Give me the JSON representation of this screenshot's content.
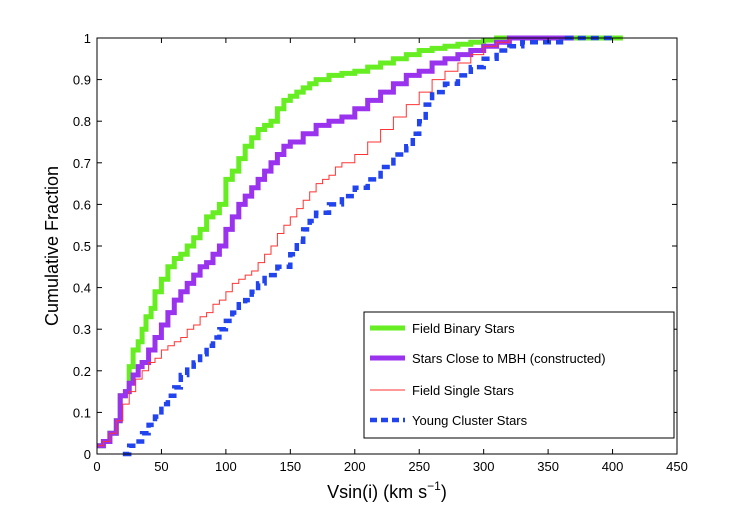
{
  "chart_data": {
    "type": "line",
    "title": "",
    "xlabel": "Vsin(i)  (km s",
    "xlabel_sup": "−1",
    "xlabel_close": ")",
    "ylabel": "Cumulative Fraction",
    "xlim": [
      0,
      450
    ],
    "ylim": [
      0,
      1
    ],
    "xticks": [
      0,
      50,
      100,
      150,
      200,
      250,
      300,
      350,
      400,
      450
    ],
    "yticks": [
      0,
      0.1,
      0.2,
      0.3,
      0.4,
      0.5,
      0.6,
      0.7,
      0.8,
      0.9,
      1
    ],
    "legend_position": "bottom-right",
    "series": [
      {
        "name": "Field Binary Stars",
        "color": "#66ee22",
        "style": "solid-thick",
        "points": [
          [
            0,
            0.02
          ],
          [
            5,
            0.03
          ],
          [
            10,
            0.05
          ],
          [
            15,
            0.08
          ],
          [
            18,
            0.14
          ],
          [
            22,
            0.15
          ],
          [
            25,
            0.21
          ],
          [
            28,
            0.25
          ],
          [
            32,
            0.27
          ],
          [
            35,
            0.3
          ],
          [
            38,
            0.33
          ],
          [
            42,
            0.35
          ],
          [
            45,
            0.39
          ],
          [
            50,
            0.42
          ],
          [
            55,
            0.45
          ],
          [
            60,
            0.47
          ],
          [
            65,
            0.48
          ],
          [
            70,
            0.5
          ],
          [
            75,
            0.52
          ],
          [
            80,
            0.54
          ],
          [
            85,
            0.57
          ],
          [
            90,
            0.58
          ],
          [
            95,
            0.6
          ],
          [
            100,
            0.66
          ],
          [
            105,
            0.68
          ],
          [
            110,
            0.71
          ],
          [
            115,
            0.74
          ],
          [
            120,
            0.76
          ],
          [
            125,
            0.78
          ],
          [
            130,
            0.79
          ],
          [
            135,
            0.8
          ],
          [
            140,
            0.83
          ],
          [
            145,
            0.85
          ],
          [
            150,
            0.86
          ],
          [
            155,
            0.87
          ],
          [
            160,
            0.88
          ],
          [
            165,
            0.89
          ],
          [
            170,
            0.9
          ],
          [
            180,
            0.91
          ],
          [
            190,
            0.915
          ],
          [
            200,
            0.92
          ],
          [
            210,
            0.93
          ],
          [
            220,
            0.94
          ],
          [
            230,
            0.95
          ],
          [
            240,
            0.96
          ],
          [
            250,
            0.97
          ],
          [
            260,
            0.975
          ],
          [
            270,
            0.98
          ],
          [
            280,
            0.985
          ],
          [
            290,
            0.99
          ],
          [
            300,
            0.995
          ],
          [
            310,
            1.0
          ],
          [
            320,
            1.0
          ],
          [
            350,
            1.0
          ],
          [
            380,
            1.0
          ],
          [
            408,
            1.0
          ]
        ]
      },
      {
        "name": "Stars Close to MBH (constructed)",
        "color": "#9933ee",
        "style": "solid-thick",
        "points": [
          [
            0,
            0.02
          ],
          [
            5,
            0.03
          ],
          [
            10,
            0.05
          ],
          [
            15,
            0.08
          ],
          [
            18,
            0.14
          ],
          [
            22,
            0.15
          ],
          [
            25,
            0.17
          ],
          [
            28,
            0.19
          ],
          [
            32,
            0.21
          ],
          [
            35,
            0.22
          ],
          [
            40,
            0.25
          ],
          [
            45,
            0.28
          ],
          [
            50,
            0.31
          ],
          [
            55,
            0.34
          ],
          [
            60,
            0.37
          ],
          [
            65,
            0.39
          ],
          [
            70,
            0.41
          ],
          [
            75,
            0.43
          ],
          [
            80,
            0.45
          ],
          [
            85,
            0.46
          ],
          [
            90,
            0.48
          ],
          [
            95,
            0.5
          ],
          [
            100,
            0.54
          ],
          [
            105,
            0.57
          ],
          [
            110,
            0.6
          ],
          [
            115,
            0.62
          ],
          [
            120,
            0.64
          ],
          [
            125,
            0.66
          ],
          [
            130,
            0.68
          ],
          [
            135,
            0.7
          ],
          [
            140,
            0.72
          ],
          [
            145,
            0.74
          ],
          [
            150,
            0.75
          ],
          [
            160,
            0.77
          ],
          [
            170,
            0.79
          ],
          [
            180,
            0.8
          ],
          [
            190,
            0.81
          ],
          [
            200,
            0.83
          ],
          [
            210,
            0.85
          ],
          [
            220,
            0.87
          ],
          [
            230,
            0.89
          ],
          [
            240,
            0.91
          ],
          [
            250,
            0.92
          ],
          [
            260,
            0.94
          ],
          [
            270,
            0.95
          ],
          [
            280,
            0.96
          ],
          [
            290,
            0.97
          ],
          [
            300,
            0.98
          ],
          [
            310,
            0.99
          ],
          [
            320,
            1.0
          ],
          [
            340,
            1.0
          ],
          [
            370,
            1.0
          ]
        ]
      },
      {
        "name": "Field Single Stars",
        "color": "#ff3333",
        "style": "solid-thin",
        "points": [
          [
            0,
            0.02
          ],
          [
            5,
            0.03
          ],
          [
            10,
            0.05
          ],
          [
            15,
            0.08
          ],
          [
            20,
            0.12
          ],
          [
            25,
            0.15
          ],
          [
            30,
            0.18
          ],
          [
            35,
            0.2
          ],
          [
            40,
            0.22
          ],
          [
            45,
            0.23
          ],
          [
            50,
            0.25
          ],
          [
            55,
            0.26
          ],
          [
            60,
            0.27
          ],
          [
            65,
            0.28
          ],
          [
            70,
            0.3
          ],
          [
            75,
            0.31
          ],
          [
            80,
            0.33
          ],
          [
            85,
            0.34
          ],
          [
            90,
            0.36
          ],
          [
            95,
            0.37
          ],
          [
            100,
            0.39
          ],
          [
            105,
            0.41
          ],
          [
            110,
            0.42
          ],
          [
            115,
            0.43
          ],
          [
            120,
            0.44
          ],
          [
            125,
            0.46
          ],
          [
            130,
            0.48
          ],
          [
            135,
            0.5
          ],
          [
            140,
            0.53
          ],
          [
            145,
            0.55
          ],
          [
            150,
            0.57
          ],
          [
            155,
            0.59
          ],
          [
            160,
            0.61
          ],
          [
            165,
            0.63
          ],
          [
            170,
            0.65
          ],
          [
            175,
            0.66
          ],
          [
            180,
            0.67
          ],
          [
            185,
            0.69
          ],
          [
            190,
            0.7
          ],
          [
            200,
            0.72
          ],
          [
            210,
            0.75
          ],
          [
            220,
            0.78
          ],
          [
            230,
            0.81
          ],
          [
            240,
            0.84
          ],
          [
            250,
            0.87
          ],
          [
            260,
            0.9
          ],
          [
            270,
            0.92
          ],
          [
            280,
            0.94
          ],
          [
            290,
            0.96
          ],
          [
            300,
            0.98
          ],
          [
            310,
            0.99
          ],
          [
            320,
            1.0
          ],
          [
            340,
            1.0
          ]
        ]
      },
      {
        "name": "Young Cluster Stars",
        "color": "#2244ee",
        "style": "dashed-thick",
        "points": [
          [
            20,
            0.0
          ],
          [
            25,
            0.02
          ],
          [
            30,
            0.03
          ],
          [
            35,
            0.05
          ],
          [
            40,
            0.07
          ],
          [
            45,
            0.09
          ],
          [
            50,
            0.12
          ],
          [
            55,
            0.14
          ],
          [
            60,
            0.16
          ],
          [
            65,
            0.19
          ],
          [
            70,
            0.21
          ],
          [
            75,
            0.22
          ],
          [
            80,
            0.24
          ],
          [
            85,
            0.26
          ],
          [
            90,
            0.28
          ],
          [
            95,
            0.3
          ],
          [
            100,
            0.32
          ],
          [
            105,
            0.34
          ],
          [
            110,
            0.36
          ],
          [
            115,
            0.37
          ],
          [
            120,
            0.39
          ],
          [
            125,
            0.41
          ],
          [
            130,
            0.43
          ],
          [
            140,
            0.45
          ],
          [
            150,
            0.48
          ],
          [
            155,
            0.51
          ],
          [
            160,
            0.54
          ],
          [
            165,
            0.56
          ],
          [
            170,
            0.58
          ],
          [
            180,
            0.6
          ],
          [
            190,
            0.62
          ],
          [
            200,
            0.64
          ],
          [
            210,
            0.66
          ],
          [
            220,
            0.69
          ],
          [
            230,
            0.72
          ],
          [
            240,
            0.74
          ],
          [
            245,
            0.77
          ],
          [
            250,
            0.8
          ],
          [
            255,
            0.84
          ],
          [
            260,
            0.87
          ],
          [
            270,
            0.89
          ],
          [
            280,
            0.91
          ],
          [
            290,
            0.93
          ],
          [
            300,
            0.95
          ],
          [
            310,
            0.97
          ],
          [
            320,
            0.98
          ],
          [
            330,
            0.99
          ],
          [
            350,
            0.99
          ],
          [
            360,
            1.0
          ],
          [
            380,
            1.0
          ],
          [
            400,
            1.0
          ]
        ]
      }
    ]
  }
}
